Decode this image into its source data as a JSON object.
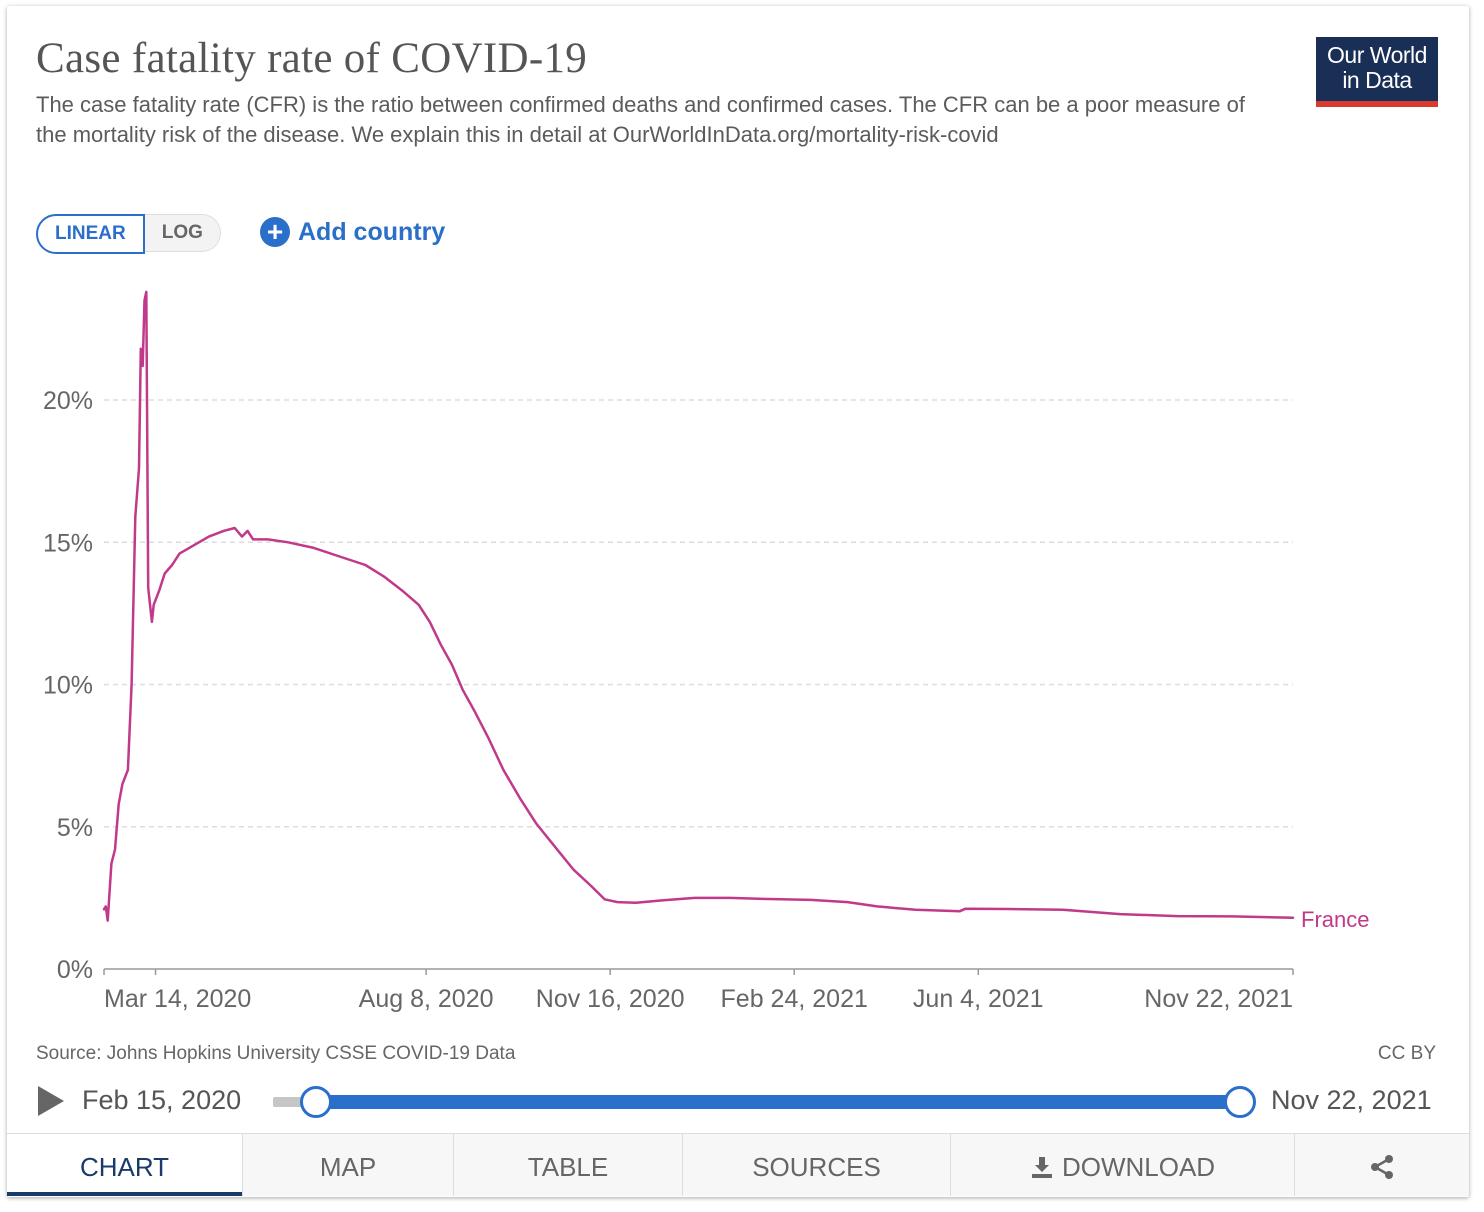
{
  "header": {
    "title": "Case fatality rate of COVID-19",
    "subtitle": "The case fatality rate (CFR) is the ratio between confirmed deaths and confirmed cases. The CFR can be a poor measure of the mortality risk of the disease. We explain this in detail at OurWorldInData.org/mortality-risk-covid",
    "logo_line1": "Our World",
    "logo_line2": "in Data"
  },
  "controls": {
    "linear_label": "LINEAR",
    "log_label": "LOG",
    "add_country_label": "Add country",
    "selected_scale": "LINEAR"
  },
  "footer": {
    "source": "Source: Johns Hopkins University CSSE COVID-19 Data",
    "license": "CC BY"
  },
  "timeline": {
    "start": "Feb 15, 2020",
    "end": "Nov 22, 2021"
  },
  "tabs": [
    {
      "label": "CHART",
      "icon": ""
    },
    {
      "label": "MAP",
      "icon": ""
    },
    {
      "label": "TABLE",
      "icon": ""
    },
    {
      "label": "SOURCES",
      "icon": ""
    },
    {
      "label": "DOWNLOAD",
      "icon": "download-icon"
    },
    {
      "label": "",
      "icon": "share-icon"
    }
  ],
  "colors": {
    "series": "#c0398a",
    "accent": "#2a6fc9",
    "logo_bg": "#1a2f55",
    "logo_bar": "#d73a2f"
  },
  "chart_data": {
    "type": "line",
    "ylim": [
      0,
      24
    ],
    "y_ticks": [
      0,
      5,
      10,
      15,
      20
    ],
    "y_tick_labels": [
      "0%",
      "5%",
      "10%",
      "15%",
      "20%"
    ],
    "x_tick_labels": [
      "Mar 14, 2020",
      "Aug 8, 2020",
      "Nov 16, 2020",
      "Feb 24, 2021",
      "Jun 4, 2021",
      "Nov 22, 2021"
    ],
    "x_tick_dates": [
      "2020-03-14",
      "2020-08-08",
      "2020-11-16",
      "2021-02-24",
      "2021-06-04",
      "2021-11-22"
    ],
    "xlim": [
      "2020-02-15",
      "2021-11-22"
    ],
    "grid": true,
    "series": [
      {
        "name": "France",
        "points": [
          [
            "2020-02-15",
            2.1
          ],
          [
            "2020-02-16",
            2.2
          ],
          [
            "2020-02-17",
            1.7
          ],
          [
            "2020-02-19",
            3.7
          ],
          [
            "2020-02-21",
            4.2
          ],
          [
            "2020-02-23",
            5.8
          ],
          [
            "2020-02-25",
            6.5
          ],
          [
            "2020-02-28",
            7.0
          ],
          [
            "2020-03-01",
            10.0
          ],
          [
            "2020-03-03",
            15.9
          ],
          [
            "2020-03-05",
            17.6
          ],
          [
            "2020-03-06",
            21.8
          ],
          [
            "2020-03-07",
            21.2
          ],
          [
            "2020-03-08",
            23.5
          ],
          [
            "2020-03-09",
            23.8
          ],
          [
            "2020-03-10",
            13.4
          ],
          [
            "2020-03-12",
            12.2
          ],
          [
            "2020-03-13",
            12.8
          ],
          [
            "2020-03-16",
            13.3
          ],
          [
            "2020-03-19",
            13.9
          ],
          [
            "2020-03-23",
            14.2
          ],
          [
            "2020-03-27",
            14.6
          ],
          [
            "2020-04-04",
            14.9
          ],
          [
            "2020-04-12",
            15.2
          ],
          [
            "2020-04-20",
            15.4
          ],
          [
            "2020-04-26",
            15.5
          ],
          [
            "2020-04-30",
            15.2
          ],
          [
            "2020-05-03",
            15.4
          ],
          [
            "2020-05-06",
            15.1
          ],
          [
            "2020-05-14",
            15.1
          ],
          [
            "2020-05-25",
            15.0
          ],
          [
            "2020-06-08",
            14.8
          ],
          [
            "2020-06-22",
            14.5
          ],
          [
            "2020-07-06",
            14.2
          ],
          [
            "2020-07-16",
            13.8
          ],
          [
            "2020-07-26",
            13.3
          ],
          [
            "2020-08-04",
            12.8
          ],
          [
            "2020-08-10",
            12.2
          ],
          [
            "2020-08-16",
            11.4
          ],
          [
            "2020-08-22",
            10.7
          ],
          [
            "2020-08-28",
            9.8
          ],
          [
            "2020-09-03",
            9.1
          ],
          [
            "2020-09-11",
            8.1
          ],
          [
            "2020-09-19",
            7.0
          ],
          [
            "2020-09-28",
            6.0
          ],
          [
            "2020-10-07",
            5.1
          ],
          [
            "2020-10-17",
            4.3
          ],
          [
            "2020-10-27",
            3.5
          ],
          [
            "2020-11-06",
            2.9
          ],
          [
            "2020-11-13",
            2.45
          ],
          [
            "2020-11-20",
            2.35
          ],
          [
            "2020-11-30",
            2.33
          ],
          [
            "2020-12-15",
            2.42
          ],
          [
            "2021-01-01",
            2.5
          ],
          [
            "2021-01-20",
            2.5
          ],
          [
            "2021-02-10",
            2.46
          ],
          [
            "2021-03-05",
            2.43
          ],
          [
            "2021-03-25",
            2.35
          ],
          [
            "2021-04-10",
            2.2
          ],
          [
            "2021-05-01",
            2.08
          ],
          [
            "2021-05-25",
            2.03
          ],
          [
            "2021-05-28",
            2.12
          ],
          [
            "2021-06-20",
            2.11
          ],
          [
            "2021-07-20",
            2.08
          ],
          [
            "2021-08-20",
            1.93
          ],
          [
            "2021-09-20",
            1.86
          ],
          [
            "2021-10-20",
            1.85
          ],
          [
            "2021-11-22",
            1.8
          ]
        ]
      }
    ]
  }
}
